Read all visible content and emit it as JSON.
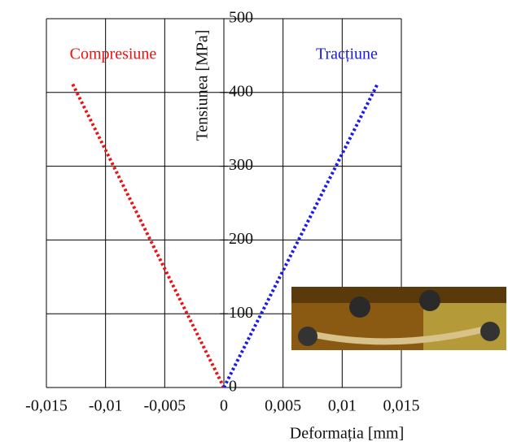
{
  "chart_data": {
    "type": "line",
    "xlabel": "Deformația [mm]",
    "ylabel": "Tensiunea [MPa]",
    "series": [
      {
        "name": "Compresiune",
        "color": "#ee1111",
        "x": [
          0,
          -0.0128
        ],
        "values": [
          0,
          412
        ]
      },
      {
        "name": "Tracțiune",
        "color": "#1a1aee",
        "x": [
          0,
          0.013
        ],
        "values": [
          0,
          412
        ]
      }
    ],
    "xlim": [
      -0.015,
      0.015
    ],
    "xticks": [
      {
        "value": -0.015,
        "label": "-0,015"
      },
      {
        "value": -0.01,
        "label": "-0,01"
      },
      {
        "value": -0.005,
        "label": "-0,005"
      },
      0,
      {
        "value": 0.005,
        "label": "0,005"
      },
      {
        "value": 0.01,
        "label": "0,01"
      },
      {
        "value": 0.015,
        "label": "0,015"
      }
    ],
    "ylim": [
      0,
      500
    ],
    "yticks": [
      0,
      100,
      200,
      300,
      400,
      500
    ],
    "grid": true
  }
}
